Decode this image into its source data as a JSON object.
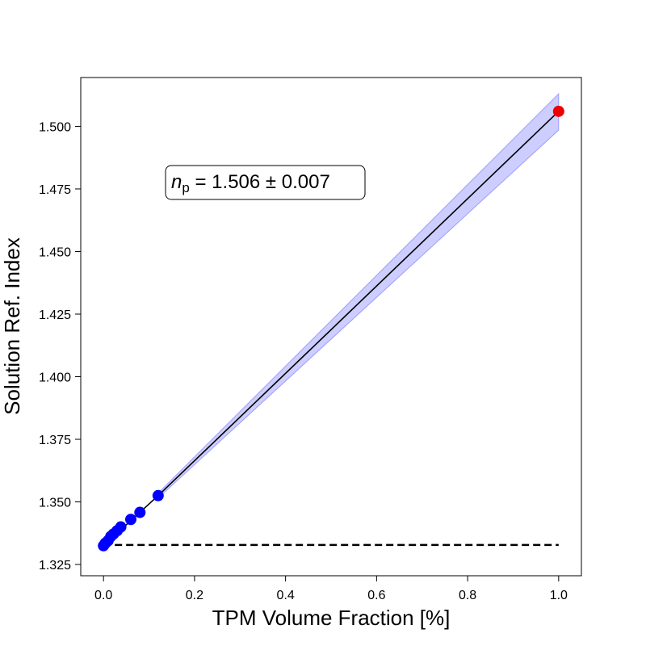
{
  "chart_data": {
    "type": "scatter",
    "title": "",
    "xlabel": "TPM Volume Fraction [%]",
    "ylabel": "Solution Ref. Index",
    "xlim": [
      -0.05,
      1.05
    ],
    "ylim": [
      1.3205,
      1.5195
    ],
    "xticks": [
      0.0,
      0.2,
      0.4,
      0.6,
      0.8,
      1.0
    ],
    "xtick_labels": [
      "0.0",
      "0.2",
      "0.4",
      "0.6",
      "0.8",
      "1.0"
    ],
    "yticks": [
      1.325,
      1.35,
      1.375,
      1.4,
      1.425,
      1.45,
      1.475,
      1.5
    ],
    "ytick_labels": [
      "1.325",
      "1.350",
      "1.375",
      "1.400",
      "1.425",
      "1.450",
      "1.475",
      "1.500"
    ],
    "grid": false,
    "series": [
      {
        "kind": "points",
        "color": "#0000ff",
        "x": [
          0.0,
          0.004,
          0.01,
          0.016,
          0.022,
          0.03,
          0.038,
          0.06,
          0.08,
          0.12
        ],
        "y": [
          1.3325,
          1.3335,
          1.3345,
          1.3362,
          1.3372,
          1.3385,
          1.34,
          1.343,
          1.3458,
          1.3525
        ]
      },
      {
        "kind": "extrapolated-point",
        "color": "#ee0000",
        "x": [
          1.0
        ],
        "y": [
          1.506
        ]
      },
      {
        "kind": "fit-line",
        "color": "#000000",
        "x": [
          0.12,
          1.0
        ],
        "y": [
          1.3525,
          1.506
        ]
      },
      {
        "kind": "confidence-band",
        "color": "#7070ff",
        "x": [
          0.12,
          1.0
        ],
        "y_low": [
          1.3515,
          1.4985
        ],
        "y_high": [
          1.3535,
          1.513
        ]
      },
      {
        "kind": "reference-dashed",
        "color": "#000000",
        "x": [
          0.0,
          1.0
        ],
        "y": [
          1.3328,
          1.3328
        ]
      }
    ],
    "annotation": {
      "symbol": "n",
      "subscript": "p",
      "value_text": " = 1.506 ± 0.007",
      "anchor_x": 0.15,
      "anchor_y": 1.4785
    }
  }
}
